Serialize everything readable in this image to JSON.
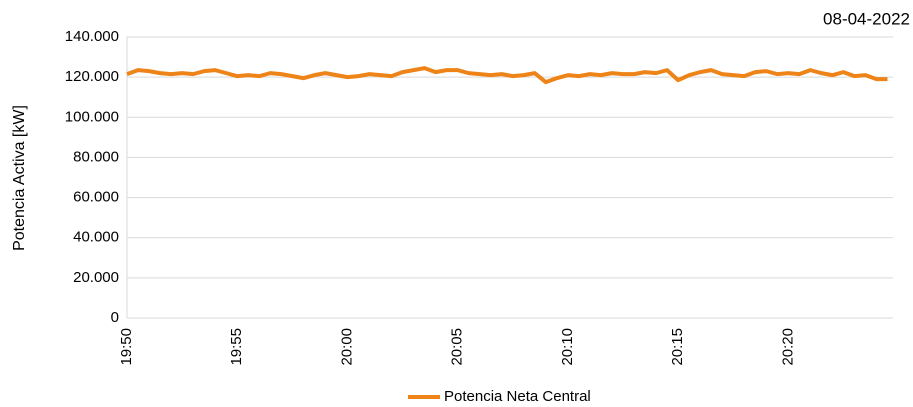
{
  "chart_data": {
    "type": "line",
    "annotation": "08-04-2022",
    "ylabel": "Potencia Activa [kW]",
    "categories": [
      "19:50",
      null,
      null,
      null,
      null,
      null,
      null,
      null,
      null,
      null,
      "19:55",
      null,
      null,
      null,
      null,
      null,
      null,
      null,
      null,
      null,
      "20:00",
      null,
      null,
      null,
      null,
      null,
      null,
      null,
      null,
      null,
      "20:05",
      null,
      null,
      null,
      null,
      null,
      null,
      null,
      null,
      null,
      "20:10",
      null,
      null,
      null,
      null,
      null,
      null,
      null,
      null,
      null,
      "20:15",
      null,
      null,
      null,
      null,
      null,
      null,
      null,
      null,
      null,
      "20:20",
      null,
      null,
      null,
      null,
      null,
      null,
      null,
      null,
      null
    ],
    "series": [
      {
        "name": "Potencia Neta Central",
        "color": "#ee8318",
        "values": [
          121500,
          123500,
          123000,
          122000,
          121500,
          122000,
          121500,
          123000,
          123500,
          122000,
          120500,
          121000,
          120500,
          122000,
          121500,
          120500,
          119500,
          121000,
          122000,
          121000,
          120000,
          120500,
          121500,
          121000,
          120500,
          122500,
          123500,
          124500,
          122500,
          123500,
          123500,
          122000,
          121500,
          121000,
          121500,
          120500,
          121000,
          122000,
          117500,
          119500,
          121000,
          120500,
          121500,
          121000,
          122000,
          121500,
          121500,
          122500,
          122000,
          123500,
          118500,
          121000,
          122500,
          123500,
          121500,
          121000,
          120500,
          122500,
          123000,
          121500,
          122000,
          121500,
          123500,
          122000,
          121000,
          122500,
          120500,
          121000,
          119000,
          119000
        ]
      }
    ],
    "ylim": [
      0,
      140000
    ],
    "yticks": [
      0,
      {
        "value": 20000,
        "label": "20.000"
      },
      {
        "value": 40000,
        "label": "40.000"
      },
      {
        "value": 60000,
        "label": "60.000"
      },
      {
        "value": 80000,
        "label": "80.000"
      },
      {
        "value": 100000,
        "label": "100.000"
      },
      {
        "value": 120000,
        "label": "120.000"
      },
      {
        "value": 140000,
        "label": "140.000"
      }
    ],
    "grid": true,
    "legend": "bottom"
  }
}
